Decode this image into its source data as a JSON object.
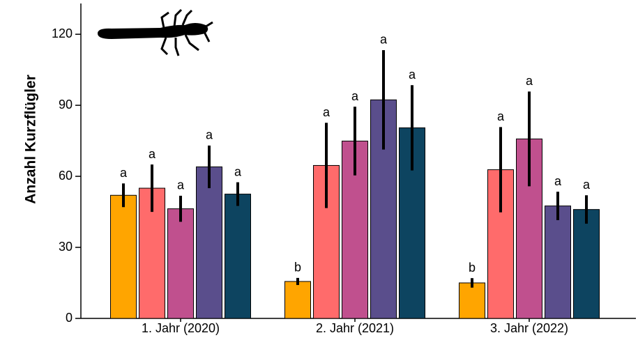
{
  "chart_data": {
    "type": "bar",
    "y_label": "Anzahl Kurzflügler",
    "categories": [
      "1. Jahr (2020)",
      "2. Jahr (2021)",
      "3. Jahr (2022)"
    ],
    "ylim": [
      0,
      133
    ],
    "yticks": [
      0,
      30,
      60,
      90,
      120
    ],
    "series": [
      {
        "color": "#FFA500",
        "values": [
          52,
          15.6,
          15
        ],
        "errors": [
          5,
          1.5,
          2
        ],
        "letters": [
          "a",
          "b",
          "b"
        ]
      },
      {
        "color": "#FF6B6B",
        "values": [
          55,
          64.6,
          62.8
        ],
        "errors": [
          10,
          18,
          18
        ],
        "letters": [
          "a",
          "a",
          "a"
        ]
      },
      {
        "color": "#C0508E",
        "values": [
          46.3,
          74.9,
          75.8
        ],
        "errors": [
          5.5,
          14.5,
          20
        ],
        "letters": [
          "a",
          "a",
          "a"
        ]
      },
      {
        "color": "#5A4E8C",
        "values": [
          64,
          92.3,
          47.5
        ],
        "errors": [
          9,
          21,
          6
        ],
        "letters": [
          "a",
          "a",
          "a"
        ]
      },
      {
        "color": "#0D4460",
        "values": [
          52.5,
          80.5,
          46
        ],
        "errors": [
          5,
          18,
          6
        ],
        "letters": [
          "a",
          "a",
          "a"
        ]
      }
    ]
  }
}
